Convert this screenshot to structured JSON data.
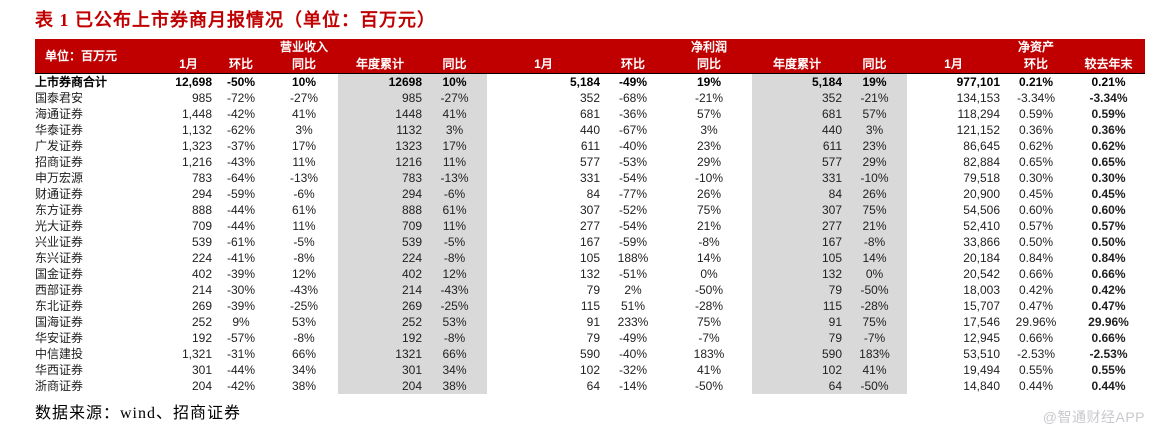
{
  "title": "表 1 已公布上市券商月报情况（单位：百万元）",
  "source_note": "数据来源：wind、招商证券",
  "watermark": "@智通财经APP",
  "colors": {
    "header_bg": "#c00000",
    "title_red": "#c00000",
    "shaded_column_bg": "#d9d9d9",
    "watermark_gray": "#c9c9ce"
  },
  "table": {
    "unit_label": "单位：百万元",
    "groups": {
      "revenue": "营业收入",
      "profit": "净利润",
      "assets": "净资产"
    },
    "columns": [
      "1月",
      "环比",
      "同比",
      "年度累计",
      "同比",
      "1月",
      "环比",
      "同比",
      "年度累计",
      "同比",
      "1月",
      "环比",
      "较去年末"
    ],
    "rows": [
      {
        "name": "上市券商合计",
        "bold": true,
        "cells": [
          "12,698",
          "-50%",
          "10%",
          "12698",
          "10%",
          "5,184",
          "-49%",
          "19%",
          "5,184",
          "19%",
          "977,101",
          "0.21%",
          "0.21%"
        ]
      },
      {
        "name": "国泰君安",
        "cells": [
          "985",
          "-72%",
          "-27%",
          "985",
          "-27%",
          "352",
          "-68%",
          "-21%",
          "352",
          "-21%",
          "134,153",
          "-3.34%",
          "-3.34%"
        ]
      },
      {
        "name": "海通证券",
        "cells": [
          "1,448",
          "-42%",
          "41%",
          "1448",
          "41%",
          "681",
          "-36%",
          "57%",
          "681",
          "57%",
          "118,294",
          "0.59%",
          "0.59%"
        ]
      },
      {
        "name": "华泰证券",
        "cells": [
          "1,132",
          "-62%",
          "3%",
          "1132",
          "3%",
          "440",
          "-67%",
          "3%",
          "440",
          "3%",
          "121,152",
          "0.36%",
          "0.36%"
        ]
      },
      {
        "name": "广发证券",
        "cells": [
          "1,323",
          "-37%",
          "17%",
          "1323",
          "17%",
          "611",
          "-40%",
          "23%",
          "611",
          "23%",
          "86,645",
          "0.62%",
          "0.62%"
        ]
      },
      {
        "name": "招商证券",
        "cells": [
          "1,216",
          "-43%",
          "11%",
          "1216",
          "11%",
          "577",
          "-53%",
          "29%",
          "577",
          "29%",
          "82,884",
          "0.65%",
          "0.65%"
        ]
      },
      {
        "name": "申万宏源",
        "cells": [
          "783",
          "-64%",
          "-13%",
          "783",
          "-13%",
          "331",
          "-54%",
          "-10%",
          "331",
          "-10%",
          "79,518",
          "0.30%",
          "0.30%"
        ]
      },
      {
        "name": "财通证券",
        "cells": [
          "294",
          "-59%",
          "-6%",
          "294",
          "-6%",
          "84",
          "-77%",
          "26%",
          "84",
          "26%",
          "20,900",
          "0.45%",
          "0.45%"
        ]
      },
      {
        "name": "东方证券",
        "cells": [
          "888",
          "-44%",
          "61%",
          "888",
          "61%",
          "307",
          "-52%",
          "75%",
          "307",
          "75%",
          "54,506",
          "0.60%",
          "0.60%"
        ]
      },
      {
        "name": "光大证券",
        "cells": [
          "709",
          "-44%",
          "11%",
          "709",
          "11%",
          "277",
          "-54%",
          "21%",
          "277",
          "21%",
          "52,410",
          "0.57%",
          "0.57%"
        ]
      },
      {
        "name": "兴业证券",
        "cells": [
          "539",
          "-61%",
          "-5%",
          "539",
          "-5%",
          "167",
          "-59%",
          "-8%",
          "167",
          "-8%",
          "33,866",
          "0.50%",
          "0.50%"
        ]
      },
      {
        "name": "东兴证券",
        "cells": [
          "224",
          "-41%",
          "-8%",
          "224",
          "-8%",
          "105",
          "188%",
          "14%",
          "105",
          "14%",
          "20,184",
          "0.84%",
          "0.84%"
        ]
      },
      {
        "name": "国金证券",
        "cells": [
          "402",
          "-39%",
          "12%",
          "402",
          "12%",
          "132",
          "-51%",
          "0%",
          "132",
          "0%",
          "20,542",
          "0.66%",
          "0.66%"
        ]
      },
      {
        "name": "西部证券",
        "cells": [
          "214",
          "-30%",
          "-43%",
          "214",
          "-43%",
          "79",
          "2%",
          "-50%",
          "79",
          "-50%",
          "18,003",
          "0.42%",
          "0.42%"
        ]
      },
      {
        "name": "东北证券",
        "cells": [
          "269",
          "-39%",
          "-25%",
          "269",
          "-25%",
          "115",
          "51%",
          "-28%",
          "115",
          "-28%",
          "15,707",
          "0.47%",
          "0.47%"
        ]
      },
      {
        "name": "国海证券",
        "cells": [
          "252",
          "9%",
          "53%",
          "252",
          "53%",
          "91",
          "233%",
          "75%",
          "91",
          "75%",
          "17,546",
          "29.96%",
          "29.96%"
        ]
      },
      {
        "name": "华安证券",
        "cells": [
          "192",
          "-57%",
          "-8%",
          "192",
          "-8%",
          "79",
          "-49%",
          "-7%",
          "79",
          "-7%",
          "12,945",
          "0.66%",
          "0.66%"
        ]
      },
      {
        "name": "中信建投",
        "cells": [
          "1,321",
          "-31%",
          "66%",
          "1321",
          "66%",
          "590",
          "-40%",
          "183%",
          "590",
          "183%",
          "53,510",
          "-2.53%",
          "-2.53%"
        ]
      },
      {
        "name": "华西证券",
        "cells": [
          "301",
          "-44%",
          "34%",
          "301",
          "34%",
          "102",
          "-32%",
          "41%",
          "102",
          "41%",
          "19,494",
          "0.55%",
          "0.55%"
        ]
      },
      {
        "name": "浙商证券",
        "cells": [
          "204",
          "-42%",
          "38%",
          "204",
          "38%",
          "64",
          "-14%",
          "-50%",
          "64",
          "-50%",
          "14,840",
          "0.44%",
          "0.44%"
        ]
      }
    ]
  }
}
